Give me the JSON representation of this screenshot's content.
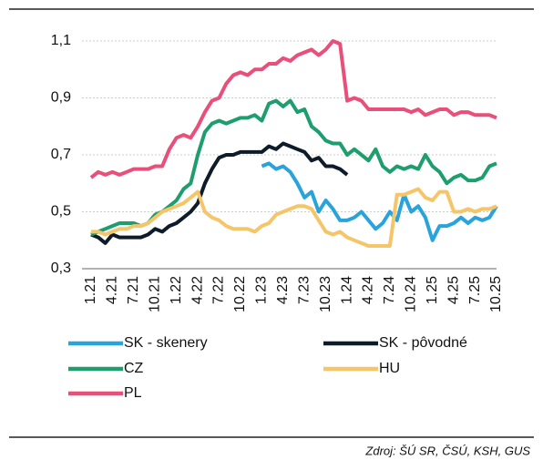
{
  "chart_data": {
    "type": "line",
    "categories": [
      "1.21",
      null,
      null,
      "4.21",
      null,
      null,
      "7.21",
      null,
      null,
      "10.21",
      null,
      null,
      "1.22",
      null,
      null,
      "4.22",
      null,
      null,
      "7.22",
      null,
      null,
      "10.22",
      null,
      null,
      "1.23",
      null,
      null,
      "4.23",
      null,
      null,
      "7.23",
      null,
      null,
      "10.23",
      null,
      null,
      "1.24",
      null,
      null,
      "4.24",
      null,
      null,
      "7.24",
      null,
      null,
      "10.24",
      null,
      null,
      "1.25",
      null,
      null,
      "4.25",
      null,
      null,
      "7.25",
      null,
      null,
      "10.25"
    ],
    "series": [
      {
        "name": "SK - skenery",
        "color": "#29a3dc",
        "values": [
          null,
          null,
          null,
          null,
          null,
          null,
          null,
          null,
          null,
          null,
          null,
          null,
          null,
          null,
          null,
          null,
          null,
          null,
          null,
          null,
          null,
          null,
          null,
          null,
          0.66,
          0.67,
          0.65,
          0.66,
          0.64,
          0.6,
          0.55,
          0.57,
          0.5,
          0.54,
          0.51,
          0.47,
          0.47,
          0.48,
          0.5,
          0.47,
          0.44,
          0.46,
          0.5,
          0.47,
          0.56,
          0.5,
          0.52,
          0.48,
          0.4,
          0.45,
          0.45,
          0.46,
          0.48,
          0.46,
          0.48,
          0.47,
          0.48,
          0.52
        ]
      },
      {
        "name": "SK - pôvodné",
        "color": "#0d1b2a",
        "values": [
          0.42,
          0.41,
          0.39,
          0.42,
          0.41,
          0.41,
          0.41,
          0.41,
          0.42,
          0.44,
          0.43,
          0.45,
          0.46,
          0.48,
          0.5,
          0.53,
          0.6,
          0.65,
          0.69,
          0.7,
          0.7,
          0.71,
          0.71,
          0.71,
          0.71,
          0.73,
          0.72,
          0.74,
          0.73,
          0.72,
          0.71,
          0.68,
          0.69,
          0.66,
          0.66,
          0.65,
          0.63,
          null,
          null,
          null,
          null,
          null,
          null,
          null,
          null,
          null,
          null,
          null,
          null,
          null,
          null,
          null,
          null,
          null,
          null,
          null,
          null,
          null
        ]
      },
      {
        "name": "CZ",
        "color": "#1e9e6e",
        "values": [
          0.42,
          0.43,
          0.44,
          0.45,
          0.46,
          0.46,
          0.46,
          0.45,
          0.46,
          0.49,
          0.5,
          0.52,
          0.54,
          0.58,
          0.6,
          0.7,
          0.78,
          0.81,
          0.82,
          0.81,
          0.82,
          0.83,
          0.83,
          0.84,
          0.82,
          0.88,
          0.89,
          0.87,
          0.89,
          0.85,
          0.86,
          0.8,
          0.78,
          0.75,
          0.74,
          0.74,
          0.7,
          0.72,
          0.7,
          0.68,
          0.72,
          0.66,
          0.64,
          0.66,
          0.65,
          0.66,
          0.65,
          0.7,
          0.66,
          0.64,
          0.6,
          0.62,
          0.63,
          0.61,
          0.61,
          0.62,
          0.66,
          0.67
        ]
      },
      {
        "name": "HU",
        "color": "#f5c56a",
        "values": [
          0.43,
          0.43,
          0.42,
          0.43,
          0.44,
          0.44,
          0.45,
          0.45,
          0.46,
          0.48,
          0.5,
          0.51,
          0.52,
          0.53,
          0.55,
          0.57,
          0.5,
          0.48,
          0.47,
          0.45,
          0.44,
          0.44,
          0.44,
          0.43,
          0.45,
          0.46,
          0.49,
          0.5,
          0.51,
          0.52,
          0.52,
          0.51,
          0.47,
          0.43,
          0.42,
          0.43,
          0.41,
          0.4,
          0.39,
          0.38,
          0.38,
          0.38,
          0.38,
          0.56,
          0.56,
          0.57,
          0.58,
          0.55,
          0.54,
          0.57,
          0.57,
          0.5,
          0.5,
          0.51,
          0.5,
          0.51,
          0.51,
          0.52
        ]
      },
      {
        "name": "PL",
        "color": "#e84f7a",
        "values": [
          0.62,
          0.64,
          0.63,
          0.64,
          0.63,
          0.64,
          0.65,
          0.65,
          0.65,
          0.66,
          0.66,
          0.72,
          0.76,
          0.77,
          0.76,
          0.8,
          0.85,
          0.89,
          0.9,
          0.95,
          0.98,
          0.99,
          0.98,
          1.0,
          1.0,
          1.02,
          1.02,
          1.04,
          1.03,
          1.05,
          1.06,
          1.07,
          1.05,
          1.07,
          1.1,
          1.09,
          0.89,
          0.9,
          0.89,
          0.86,
          0.86,
          0.86,
          0.86,
          0.86,
          0.86,
          0.85,
          0.86,
          0.84,
          0.85,
          0.86,
          0.86,
          0.84,
          0.85,
          0.85,
          0.84,
          0.84,
          0.84,
          0.83
        ]
      }
    ],
    "ylim": [
      0.3,
      1.1
    ],
    "yticks": [
      {
        "value": 0.3,
        "label": "0,3"
      },
      {
        "value": 0.5,
        "label": "0,5"
      },
      {
        "value": 0.7,
        "label": "0,7"
      },
      {
        "value": 0.9,
        "label": "0,9"
      },
      {
        "value": 1.1,
        "label": "1,1"
      }
    ],
    "grid": true,
    "source": "Zdroj: ŠÚ SR, ČSÚ, KSH, GUS"
  }
}
